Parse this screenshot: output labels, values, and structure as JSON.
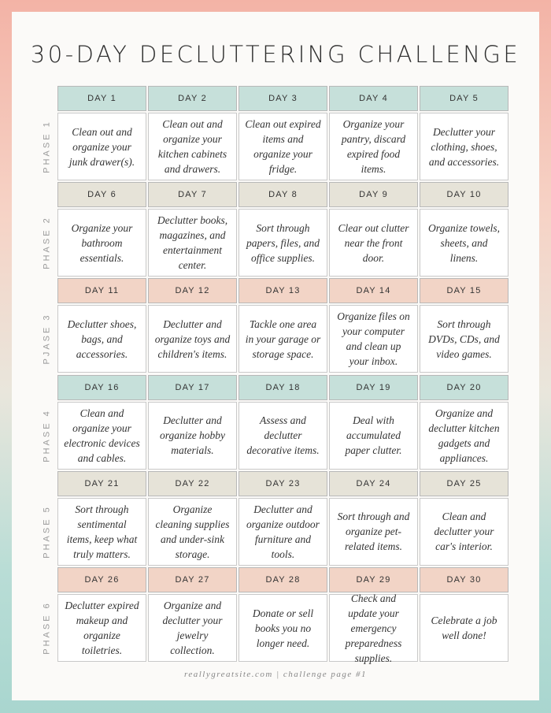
{
  "title": "30-DAY DECLUTTERING CHALLENGE",
  "colors": {
    "teal": "#c6e0da",
    "beige": "#e6e3d8",
    "peach": "#f2d4c6"
  },
  "phases": [
    {
      "label": "PHASE 1",
      "color": "#c6e0da",
      "days": [
        "DAY 1",
        "DAY 2",
        "DAY 3",
        "DAY 4",
        "DAY 5"
      ],
      "tasks": [
        "Clean out and organize your junk drawer(s).",
        "Clean out and organize your kitchen cabinets and drawers.",
        "Clean out expired items and organize your fridge.",
        "Organize your pantry, discard expired food items.",
        "Declutter your clothing, shoes, and accessories."
      ]
    },
    {
      "label": "PHASE 2",
      "color": "#e6e3d8",
      "days": [
        "DAY 6",
        "DAY 7",
        "DAY 8",
        "DAY 9",
        "DAY 10"
      ],
      "tasks": [
        "Organize your bathroom essentials.",
        "Declutter books, magazines, and entertainment center.",
        "Sort through papers, files, and office supplies.",
        "Clear out clutter near the front door.",
        "Organize towels, sheets, and linens."
      ]
    },
    {
      "label": "PJASE 3",
      "color": "#f2d4c6",
      "days": [
        "DAY 11",
        "DAY 12",
        "DAY 13",
        "DAY 14",
        "DAY 15"
      ],
      "tasks": [
        "Declutter shoes, bags, and accessories.",
        "Declutter and organize toys and children's items.",
        "Tackle one area in your garage or storage space.",
        "Organize files on your computer and clean up your inbox.",
        "Sort through DVDs, CDs, and video games."
      ]
    },
    {
      "label": "PHASE 4",
      "color": "#c6e0da",
      "days": [
        "DAY 16",
        "DAY 17",
        "DAY 18",
        "DAY 19",
        "DAY 20"
      ],
      "tasks": [
        "Clean and organize your electronic devices and cables.",
        "Declutter and organize hobby materials.",
        "Assess and declutter decorative items.",
        "Deal with accumulated paper clutter.",
        "Organize and declutter kitchen gadgets and appliances."
      ]
    },
    {
      "label": "PHASE 5",
      "color": "#e6e3d8",
      "days": [
        "DAY 21",
        "DAY 22",
        "DAY 23",
        "DAY 24",
        "DAY 25"
      ],
      "tasks": [
        "Sort through sentimental items, keep what truly matters.",
        "Organize cleaning supplies and under-sink storage.",
        "Declutter and organize outdoor furniture and tools.",
        "Sort through and organize pet-related items.",
        "Clean and declutter your car's interior."
      ]
    },
    {
      "label": "PHASE 6",
      "color": "#f2d4c6",
      "days": [
        "DAY 26",
        "DAY 27",
        "DAY 28",
        "DAY 29",
        "DAY 30"
      ],
      "tasks": [
        "Declutter expired makeup and organize toiletries.",
        "Organize and declutter your jewelry collection.",
        "Donate or sell books you no longer need.",
        "Check and update your emergency preparedness supplies.",
        "Celebrate a job well done!"
      ]
    }
  ],
  "footer": "reallygreatsite.com | challenge page #1"
}
